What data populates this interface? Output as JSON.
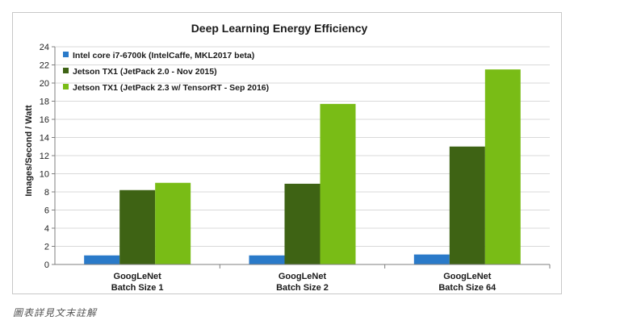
{
  "chart_data": {
    "type": "bar",
    "title": "Deep Learning Energy Efficiency",
    "xlabel": "",
    "ylabel": "Images/Second / Watt",
    "ylim": [
      0,
      24
    ],
    "yticks": [
      0,
      2,
      4,
      6,
      8,
      10,
      12,
      14,
      16,
      18,
      20,
      22,
      24
    ],
    "grid": true,
    "legend_position": "top-left",
    "categories": [
      [
        "GoogLeNet",
        "Batch Size 1"
      ],
      [
        "GoogLeNet",
        "Batch Size 2"
      ],
      [
        "GoogLeNet",
        "Batch Size 64"
      ]
    ],
    "series": [
      {
        "name": "Intel core i7-6700k (IntelCaffe, MKL2017 beta)",
        "color": "#2a7ac9",
        "values": [
          1.0,
          1.0,
          1.1
        ]
      },
      {
        "name": "Jetson TX1 (JetPack 2.0 - Nov 2015)",
        "color": "#3e6314",
        "values": [
          8.2,
          8.9,
          13.0
        ]
      },
      {
        "name": "Jetson TX1 (JetPack 2.3 w/ TensorRT - Sep 2016)",
        "color": "#79bc16",
        "values": [
          9.0,
          17.7,
          21.5
        ]
      }
    ]
  },
  "caption": "圖表詳見文末註解"
}
